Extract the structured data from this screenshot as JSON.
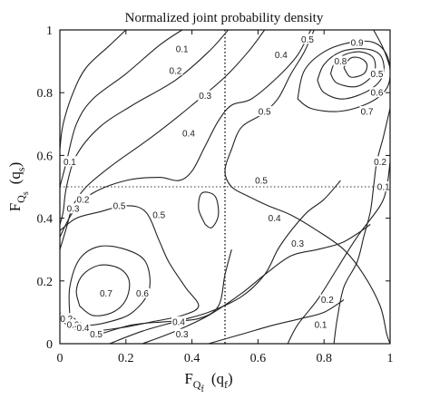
{
  "chart_data": {
    "type": "contour",
    "title": "Normalized joint probability density",
    "xlabel": {
      "main": "F",
      "sub": "Q",
      "subsub": "f",
      "arg": "(q",
      "argsub": "f",
      "close": ")"
    },
    "ylabel": {
      "main": "F",
      "sub": "Q",
      "subsub": "s",
      "arg": "(q",
      "argsub": "s",
      "close": ")"
    },
    "xlim": [
      0,
      1
    ],
    "ylim": [
      0,
      1
    ],
    "x_ticks": [
      0,
      0.2,
      0.4,
      0.6,
      0.8,
      1
    ],
    "y_ticks": [
      0,
      0.2,
      0.4,
      0.6,
      0.8,
      1
    ],
    "x_tick_labels": [
      "0",
      "0.2",
      "0.4",
      "0.6",
      "0.8",
      "1"
    ],
    "y_tick_labels": [
      "0",
      "0.2",
      "0.4",
      "0.6",
      "0.8",
      "1"
    ],
    "reference_lines": [
      {
        "axis": "x",
        "value": 0.5,
        "style": "dotted"
      },
      {
        "axis": "y",
        "value": 0.5,
        "style": "dotted"
      }
    ],
    "grid": false,
    "legend": "none",
    "levels": [
      0.1,
      0.2,
      0.3,
      0.4,
      0.5,
      0.6,
      0.7,
      0.8,
      0.9
    ],
    "contours": [
      {
        "level": 0.1,
        "points": [
          [
            0.2,
            1.0
          ],
          [
            0.15,
            0.95
          ],
          [
            0.08,
            0.88
          ],
          [
            0.04,
            0.8
          ],
          [
            0.01,
            0.7
          ],
          [
            0.0,
            0.62
          ]
        ]
      },
      {
        "level": 0.2,
        "points": [
          [
            0.37,
            1.0
          ],
          [
            0.3,
            0.95
          ],
          [
            0.2,
            0.86
          ],
          [
            0.1,
            0.78
          ],
          [
            0.05,
            0.7
          ],
          [
            0.02,
            0.58
          ],
          [
            0.0,
            0.5
          ]
        ]
      },
      {
        "level": 0.3,
        "points": [
          [
            0.51,
            1.0
          ],
          [
            0.45,
            0.93
          ],
          [
            0.35,
            0.84
          ],
          [
            0.22,
            0.76
          ],
          [
            0.12,
            0.69
          ],
          [
            0.05,
            0.6
          ],
          [
            0.02,
            0.5
          ],
          [
            0.01,
            0.42
          ],
          [
            0.0,
            0.38
          ]
        ]
      },
      {
        "level": 0.4,
        "points": [
          [
            0.62,
            1.0
          ],
          [
            0.57,
            0.93
          ],
          [
            0.5,
            0.85
          ],
          [
            0.4,
            0.76
          ],
          [
            0.28,
            0.66
          ],
          [
            0.16,
            0.57
          ],
          [
            0.08,
            0.5
          ],
          [
            0.04,
            0.44
          ],
          [
            0.02,
            0.37
          ],
          [
            0.0,
            0.3
          ]
        ]
      },
      {
        "level": 0.5,
        "points": [
          [
            0.0,
            0.34
          ],
          [
            0.04,
            0.42
          ],
          [
            0.1,
            0.48
          ],
          [
            0.2,
            0.52
          ],
          [
            0.3,
            0.53
          ],
          [
            0.36,
            0.52
          ],
          [
            0.4,
            0.55
          ],
          [
            0.44,
            0.63
          ],
          [
            0.48,
            0.71
          ],
          [
            0.52,
            0.76
          ],
          [
            0.58,
            0.78
          ],
          [
            0.66,
            0.85
          ],
          [
            0.72,
            0.92
          ],
          [
            0.76,
            1.0
          ]
        ]
      },
      {
        "level": 0.4,
        "points": [
          [
            0.77,
            1.0
          ],
          [
            0.74,
            0.93
          ],
          [
            0.7,
            0.86
          ],
          [
            0.66,
            0.78
          ],
          [
            0.61,
            0.73
          ],
          [
            0.55,
            0.69
          ],
          [
            0.52,
            0.62
          ],
          [
            0.5,
            0.55
          ],
          [
            0.52,
            0.5
          ],
          [
            0.57,
            0.47
          ],
          [
            0.63,
            0.44
          ],
          [
            0.7,
            0.41
          ],
          [
            0.78,
            0.36
          ],
          [
            0.86,
            0.3
          ],
          [
            0.92,
            0.22
          ],
          [
            0.97,
            0.12
          ],
          [
            0.99,
            0.03
          ],
          [
            1.0,
            0.0
          ]
        ]
      },
      {
        "level": 0.3,
        "points": [
          [
            0.95,
            1.0
          ],
          [
            0.98,
            0.94
          ],
          [
            1.0,
            0.88
          ]
        ]
      },
      {
        "level": 0.2,
        "points": [
          [
            1.0,
            0.75
          ],
          [
            0.98,
            0.66
          ],
          [
            0.96,
            0.58
          ],
          [
            0.95,
            0.5
          ],
          [
            0.94,
            0.42
          ],
          [
            0.92,
            0.34
          ],
          [
            0.9,
            0.26
          ],
          [
            0.86,
            0.18
          ],
          [
            0.84,
            0.08
          ],
          [
            0.83,
            0.0
          ]
        ]
      },
      {
        "level": 0.1,
        "points": [
          [
            1.0,
            0.58
          ],
          [
            0.99,
            0.5
          ],
          [
            0.97,
            0.44
          ],
          [
            0.9,
            0.34
          ],
          [
            0.84,
            0.24
          ],
          [
            0.78,
            0.14
          ],
          [
            0.72,
            0.06
          ],
          [
            0.69,
            0.0
          ]
        ]
      },
      {
        "level": 0.2,
        "points": [
          [
            0.25,
            0.0
          ],
          [
            0.35,
            0.04
          ],
          [
            0.45,
            0.09
          ],
          [
            0.55,
            0.16
          ],
          [
            0.62,
            0.22
          ],
          [
            0.7,
            0.28
          ],
          [
            0.78,
            0.3
          ],
          [
            0.85,
            0.32
          ],
          [
            0.9,
            0.35
          ],
          [
            0.94,
            0.38
          ]
        ]
      },
      {
        "level": 0.1,
        "points": [
          [
            0.45,
            0.0
          ],
          [
            0.55,
            0.03
          ],
          [
            0.65,
            0.06
          ],
          [
            0.73,
            0.08
          ],
          [
            0.8,
            0.1
          ],
          [
            0.86,
            0.14
          ]
        ]
      },
      {
        "level": 0.3,
        "points": [
          [
            0.15,
            0.0
          ],
          [
            0.25,
            0.04
          ],
          [
            0.35,
            0.07
          ],
          [
            0.45,
            0.1
          ],
          [
            0.55,
            0.15
          ],
          [
            0.62,
            0.22
          ],
          [
            0.66,
            0.3
          ],
          [
            0.7,
            0.36
          ],
          [
            0.75,
            0.42
          ],
          [
            0.8,
            0.46
          ],
          [
            0.85,
            0.52
          ]
        ]
      },
      {
        "level": 0.4,
        "points": [
          [
            0.12,
            0.03
          ],
          [
            0.22,
            0.06
          ],
          [
            0.32,
            0.07
          ],
          [
            0.42,
            0.08
          ],
          [
            0.48,
            0.12
          ],
          [
            0.5,
            0.22
          ],
          [
            0.52,
            0.3
          ]
        ]
      },
      {
        "level": 0.5,
        "points": [
          [
            0.0,
            0.36
          ],
          [
            0.05,
            0.4
          ],
          [
            0.12,
            0.42
          ],
          [
            0.2,
            0.44
          ],
          [
            0.26,
            0.42
          ],
          [
            0.3,
            0.33
          ],
          [
            0.33,
            0.26
          ],
          [
            0.38,
            0.18
          ],
          [
            0.42,
            0.12
          ],
          [
            0.37,
            0.09
          ],
          [
            0.28,
            0.07
          ],
          [
            0.18,
            0.05
          ],
          [
            0.08,
            0.04
          ],
          [
            0.02,
            0.06
          ],
          [
            0.0,
            0.1
          ]
        ]
      },
      {
        "level": 0.6,
        "points": [
          [
            0.03,
            0.09
          ],
          [
            0.08,
            0.06
          ],
          [
            0.15,
            0.07
          ],
          [
            0.22,
            0.1
          ],
          [
            0.27,
            0.17
          ],
          [
            0.26,
            0.26
          ],
          [
            0.2,
            0.3
          ],
          [
            0.12,
            0.31
          ],
          [
            0.06,
            0.27
          ],
          [
            0.03,
            0.18
          ],
          [
            0.03,
            0.09
          ]
        ]
      },
      {
        "level": 0.7,
        "points": [
          [
            0.06,
            0.12
          ],
          [
            0.1,
            0.09
          ],
          [
            0.16,
            0.1
          ],
          [
            0.2,
            0.14
          ],
          [
            0.21,
            0.2
          ],
          [
            0.18,
            0.24
          ],
          [
            0.12,
            0.25
          ],
          [
            0.07,
            0.22
          ],
          [
            0.05,
            0.17
          ],
          [
            0.06,
            0.12
          ]
        ]
      },
      {
        "level": 0.5,
        "points": [
          [
            0.44,
            0.38
          ],
          [
            0.42,
            0.43
          ],
          [
            0.43,
            0.48
          ],
          [
            0.47,
            0.47
          ],
          [
            0.48,
            0.41
          ],
          [
            0.46,
            0.37
          ],
          [
            0.44,
            0.38
          ]
        ]
      },
      {
        "level": 0.6,
        "points": [
          [
            0.72,
            0.78
          ],
          [
            0.76,
            0.75
          ],
          [
            0.84,
            0.74
          ],
          [
            0.92,
            0.76
          ],
          [
            0.98,
            0.8
          ],
          [
            1.0,
            0.85
          ],
          [
            0.99,
            0.92
          ],
          [
            0.95,
            0.96
          ],
          [
            0.88,
            0.96
          ],
          [
            0.8,
            0.93
          ],
          [
            0.74,
            0.87
          ],
          [
            0.72,
            0.78
          ]
        ]
      },
      {
        "level": 0.7,
        "points": [
          [
            0.78,
            0.84
          ],
          [
            0.8,
            0.8
          ],
          [
            0.86,
            0.78
          ],
          [
            0.94,
            0.81
          ],
          [
            0.98,
            0.86
          ],
          [
            0.97,
            0.92
          ],
          [
            0.92,
            0.94
          ],
          [
            0.85,
            0.93
          ],
          [
            0.8,
            0.89
          ],
          [
            0.78,
            0.84
          ]
        ]
      },
      {
        "level": 0.8,
        "points": [
          [
            0.82,
            0.86
          ],
          [
            0.84,
            0.83
          ],
          [
            0.9,
            0.82
          ],
          [
            0.95,
            0.86
          ],
          [
            0.95,
            0.91
          ],
          [
            0.91,
            0.93
          ],
          [
            0.86,
            0.92
          ],
          [
            0.83,
            0.89
          ],
          [
            0.82,
            0.86
          ]
        ]
      },
      {
        "level": 0.9,
        "points": [
          [
            0.86,
            0.88
          ],
          [
            0.88,
            0.85
          ],
          [
            0.92,
            0.86
          ],
          [
            0.93,
            0.89
          ],
          [
            0.91,
            0.91
          ],
          [
            0.88,
            0.91
          ],
          [
            0.86,
            0.88
          ]
        ]
      }
    ],
    "contour_labels": [
      {
        "text": "0.1",
        "x": 0.37,
        "y": 0.94
      },
      {
        "text": "0.2",
        "x": 0.35,
        "y": 0.87
      },
      {
        "text": "0.3",
        "x": 0.44,
        "y": 0.79
      },
      {
        "text": "0.4",
        "x": 0.39,
        "y": 0.67
      },
      {
        "text": "0.5",
        "x": 0.62,
        "y": 0.74
      },
      {
        "text": "0.5",
        "x": 0.61,
        "y": 0.52
      },
      {
        "text": "0.4",
        "x": 0.67,
        "y": 0.92
      },
      {
        "text": "0.5",
        "x": 0.75,
        "y": 0.97
      },
      {
        "text": "0.4",
        "x": 0.65,
        "y": 0.4
      },
      {
        "text": "0.3",
        "x": 0.72,
        "y": 0.32
      },
      {
        "text": "0.2",
        "x": 0.81,
        "y": 0.14
      },
      {
        "text": "0.1",
        "x": 0.79,
        "y": 0.06
      },
      {
        "text": "0.1",
        "x": 0.98,
        "y": 0.5
      },
      {
        "text": "0.2",
        "x": 0.97,
        "y": 0.58
      },
      {
        "text": "0.5",
        "x": 0.96,
        "y": 0.86
      },
      {
        "text": "0.6",
        "x": 0.96,
        "y": 0.8
      },
      {
        "text": "0.7",
        "x": 0.93,
        "y": 0.74
      },
      {
        "text": "0.8",
        "x": 0.85,
        "y": 0.9
      },
      {
        "text": "0.9",
        "x": 0.9,
        "y": 0.96
      },
      {
        "text": "0.1",
        "x": 0.03,
        "y": 0.58
      },
      {
        "text": "0.2",
        "x": 0.07,
        "y": 0.46
      },
      {
        "text": "0.3",
        "x": 0.04,
        "y": 0.43
      },
      {
        "text": "0.5",
        "x": 0.18,
        "y": 0.44
      },
      {
        "text": "0.5",
        "x": 0.3,
        "y": 0.41
      },
      {
        "text": "0.6",
        "x": 0.25,
        "y": 0.16
      },
      {
        "text": "0.7",
        "x": 0.14,
        "y": 0.16
      },
      {
        "text": "0.2",
        "x": 0.02,
        "y": 0.08
      },
      {
        "text": "0.3",
        "x": 0.04,
        "y": 0.06
      },
      {
        "text": "0.4",
        "x": 0.07,
        "y": 0.05
      },
      {
        "text": "0.5",
        "x": 0.11,
        "y": 0.03
      },
      {
        "text": "0.3",
        "x": 0.37,
        "y": 0.03
      },
      {
        "text": "0.4",
        "x": 0.36,
        "y": 0.07
      }
    ]
  }
}
